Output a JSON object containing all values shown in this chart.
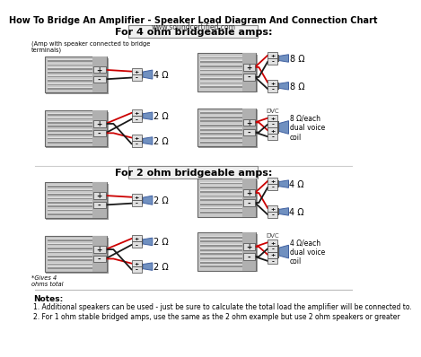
{
  "title": "How To Bridge An Amplifier - Speaker Load Diagram And Connection Chart",
  "subtitle": "www.soundcertified.com",
  "section1_title": "For 4 ohm bridgeable amps:",
  "section2_title": "For 2 ohm bridgeable amps:",
  "amp_note": "(Amp with speaker connected to bridge\nterminals)",
  "gives_note": "*Gives 4\nohms total",
  "notes_title": "Notes:",
  "note1": "1. Additional speakers can be used - just be sure to calculate the total load the amplifier will be connected to.",
  "note2": "2. For 1 ohm stable bridged amps, use the same as the 2 ohm example but use 2 ohm speakers or greater",
  "bg_color": "#ffffff",
  "wire_red": "#cc0000",
  "wire_black": "#1a1a1a",
  "speaker_color": "#7090c0",
  "speaker_dark": "#4060a0"
}
